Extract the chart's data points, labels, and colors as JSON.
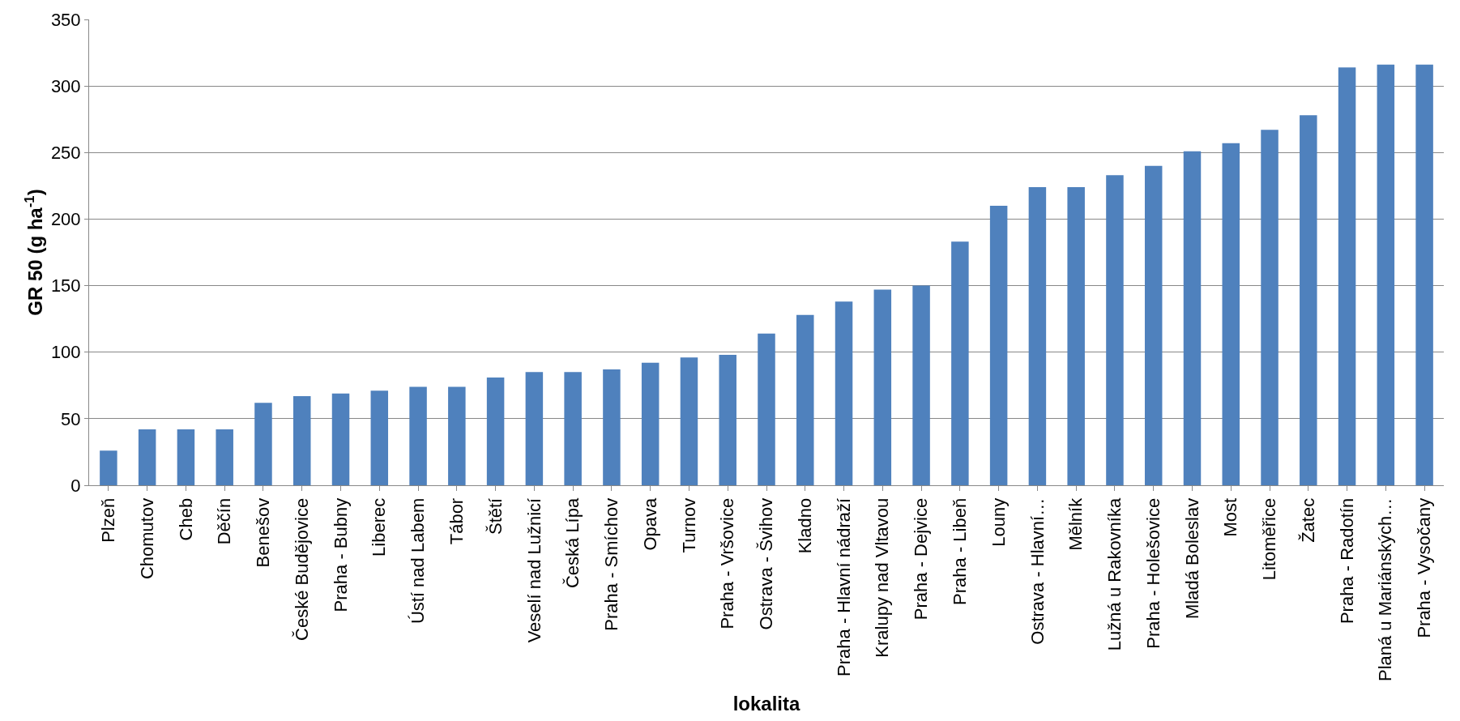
{
  "chart_data": {
    "type": "bar",
    "xlabel": "lokalita",
    "ylabel": "GR 50 (g ha$^{-1}$)",
    "categories": [
      "Plzeň",
      "Chomutov",
      "Cheb",
      "Děčín",
      "Benešov",
      "České Budějovice",
      "Praha - Bubny",
      "Liberec",
      "Ústí nad Labem",
      "Tábor",
      "Štětí",
      "Veselí nad Lužnicí",
      "Česká Lípa",
      "Praha - Smíchov",
      "Opava",
      "Turnov",
      "Praha - Vršovice",
      "Ostrava - Švihov",
      "Kladno",
      "Praha - Hlavní nádraží",
      "Kralupy nad Vltavou",
      "Praha - Dejvice",
      "Praha - Libeň",
      "Louny",
      "Ostrava - Hlavní…",
      "Mělník",
      "Lužná u Rakovníka",
      "Praha - Holešovice",
      "Mladá Boleslav",
      "Most",
      "Litoměřice",
      "Žatec",
      "Praha - Radotín",
      "Planá u Mariánských…",
      "Praha - Vysočany"
    ],
    "values": [
      26,
      42,
      42,
      42,
      62,
      67,
      69,
      71,
      74,
      74,
      81,
      85,
      85,
      87,
      92,
      96,
      98,
      114,
      128,
      138,
      147,
      150,
      183,
      210,
      224,
      224,
      233,
      240,
      251,
      257,
      267,
      278,
      314,
      316,
      316
    ],
    "color": "#4f81bd",
    "ylim": [
      0,
      350
    ],
    "yticks": [
      0,
      50,
      100,
      150,
      200,
      250,
      300,
      350
    ],
    "grid": "y"
  }
}
